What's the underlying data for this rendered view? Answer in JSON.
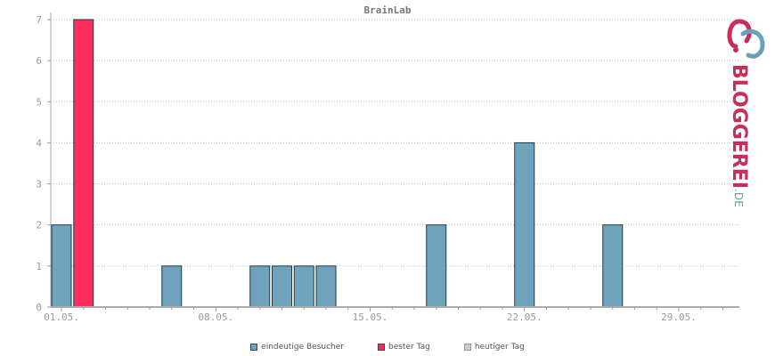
{
  "chart_data": {
    "type": "bar",
    "title": "BrainLab",
    "categories": [
      "01.05.",
      "02.05.",
      "03.05.",
      "04.05.",
      "05.05.",
      "06.05.",
      "07.05.",
      "08.05.",
      "09.05.",
      "10.05.",
      "11.05.",
      "12.05.",
      "13.05.",
      "14.05.",
      "15.05.",
      "16.05.",
      "17.05.",
      "18.05.",
      "19.05.",
      "20.05.",
      "21.05.",
      "22.05.",
      "23.05.",
      "24.05.",
      "25.05.",
      "26.05.",
      "27.05.",
      "28.05.",
      "29.05.",
      "30.05.",
      "31.05."
    ],
    "series": [
      {
        "name": "eindeutige Besucher",
        "color": "#6fa3bb",
        "values": [
          2,
          0,
          0,
          0,
          0,
          1,
          0,
          0,
          0,
          1,
          1,
          1,
          1,
          0,
          0,
          0,
          0,
          2,
          0,
          0,
          0,
          4,
          0,
          0,
          0,
          2,
          0,
          0,
          0,
          0,
          0
        ]
      },
      {
        "name": "bester Tag",
        "color": "#ff2c5e",
        "values": [
          0,
          7,
          0,
          0,
          0,
          0,
          0,
          0,
          0,
          0,
          0,
          0,
          0,
          0,
          0,
          0,
          0,
          0,
          0,
          0,
          0,
          0,
          0,
          0,
          0,
          0,
          0,
          0,
          0,
          0,
          0
        ]
      },
      {
        "name": "heutiger Tag",
        "color": "#cccccc",
        "values": [
          0,
          0,
          0,
          0,
          0,
          0,
          0,
          0,
          0,
          0,
          0,
          0,
          0,
          0,
          0,
          0,
          0,
          0,
          0,
          0,
          0,
          0,
          0,
          0,
          0,
          0,
          0,
          0,
          0,
          0,
          0
        ]
      }
    ],
    "xticks": [
      "01.05.",
      "08.05.",
      "15.05.",
      "22.05.",
      "29.05."
    ],
    "yticks": [
      0,
      1,
      2,
      3,
      4,
      5,
      6,
      7
    ],
    "ylim": [
      0,
      7
    ],
    "grid": true,
    "legend_position": "bottom-center"
  },
  "logo": {
    "text": "BLOGGEREI",
    "suffix": ".DE"
  }
}
